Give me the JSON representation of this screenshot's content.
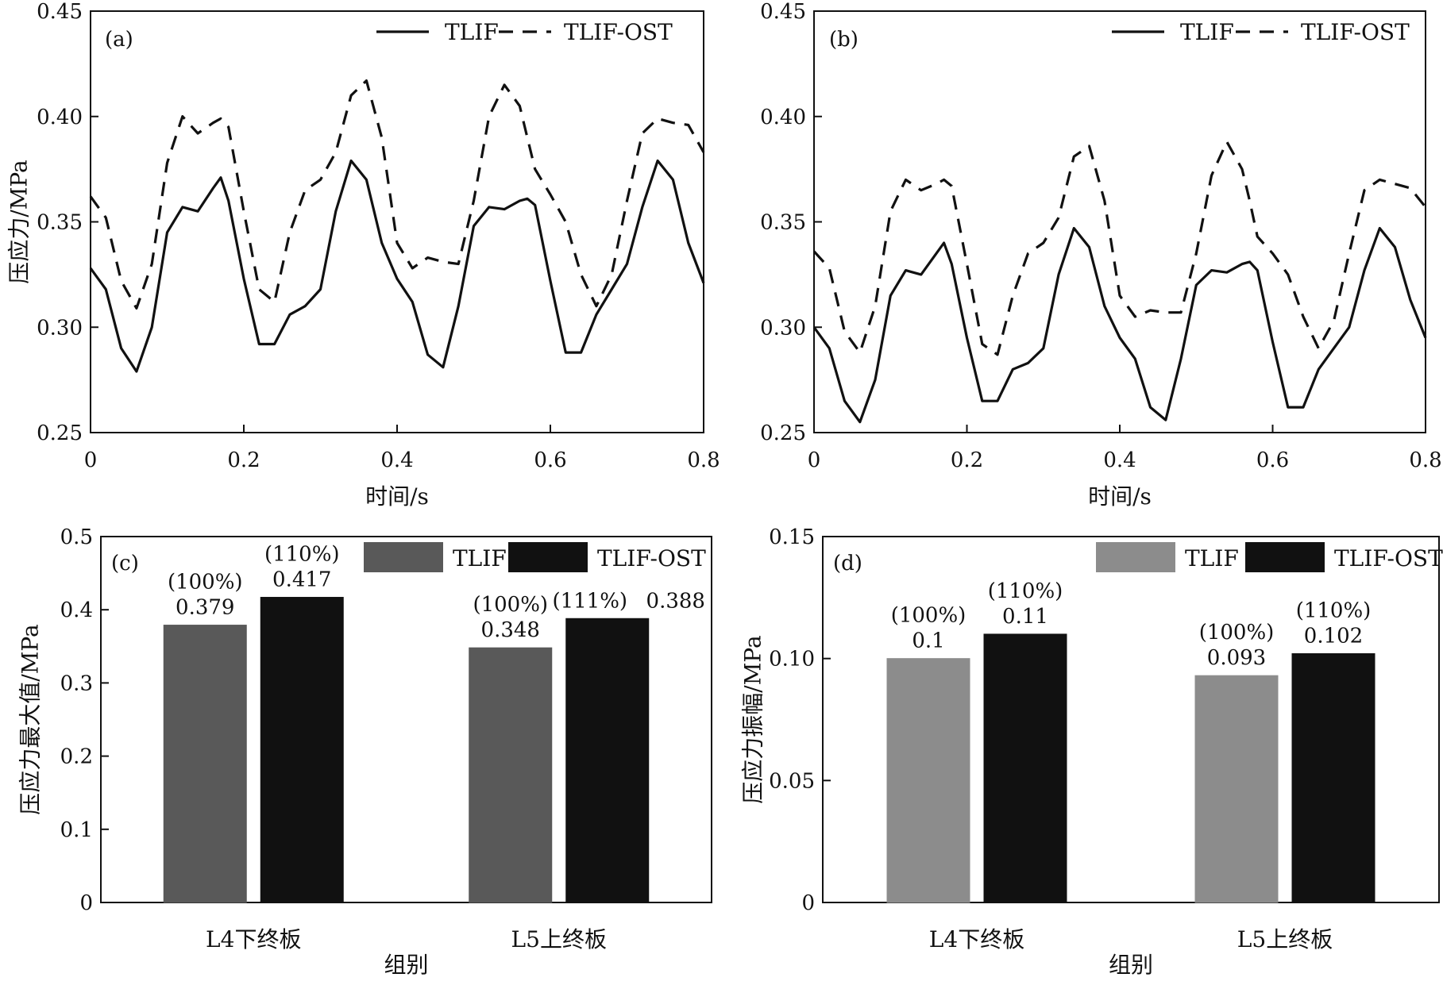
{
  "chart_data": [
    {
      "panel": "(a)",
      "type": "line",
      "xlabel": "时间/s",
      "ylabel": "压应力/MPa",
      "xlim": [
        0,
        0.8
      ],
      "ylim": [
        0.25,
        0.45
      ],
      "xticks": [
        "0",
        "0.2",
        "0.4",
        "0.6",
        "0.8"
      ],
      "yticks": [
        "0.25",
        "0.30",
        "0.35",
        "0.40",
        "0.45"
      ],
      "legend_position": "top-right",
      "series": [
        {
          "name": "TLIF",
          "style": "solid",
          "x": [
            0,
            0.02,
            0.04,
            0.06,
            0.08,
            0.1,
            0.12,
            0.14,
            0.16,
            0.17,
            0.18,
            0.2,
            0.22,
            0.24,
            0.26,
            0.28,
            0.3,
            0.32,
            0.34,
            0.36,
            0.38,
            0.4,
            0.42,
            0.44,
            0.46,
            0.48,
            0.5,
            0.52,
            0.54,
            0.56,
            0.57,
            0.58,
            0.6,
            0.62,
            0.64,
            0.66,
            0.68,
            0.7,
            0.72,
            0.74,
            0.76,
            0.78,
            0.8
          ],
          "y": [
            0.328,
            0.318,
            0.29,
            0.279,
            0.3,
            0.345,
            0.357,
            0.355,
            0.366,
            0.371,
            0.36,
            0.323,
            0.292,
            0.292,
            0.306,
            0.31,
            0.318,
            0.355,
            0.379,
            0.37,
            0.34,
            0.323,
            0.312,
            0.287,
            0.281,
            0.31,
            0.348,
            0.357,
            0.356,
            0.36,
            0.361,
            0.358,
            0.322,
            0.288,
            0.288,
            0.306,
            0.318,
            0.33,
            0.357,
            0.379,
            0.37,
            0.34,
            0.321
          ]
        },
        {
          "name": "TLIF-OST",
          "style": "dashed",
          "x": [
            0,
            0.02,
            0.04,
            0.06,
            0.08,
            0.1,
            0.12,
            0.14,
            0.16,
            0.17,
            0.18,
            0.2,
            0.22,
            0.24,
            0.26,
            0.28,
            0.3,
            0.32,
            0.34,
            0.36,
            0.38,
            0.4,
            0.42,
            0.44,
            0.46,
            0.48,
            0.5,
            0.52,
            0.54,
            0.56,
            0.57,
            0.58,
            0.6,
            0.62,
            0.64,
            0.66,
            0.68,
            0.7,
            0.72,
            0.74,
            0.76,
            0.78,
            0.8
          ],
          "y": [
            0.362,
            0.352,
            0.322,
            0.309,
            0.33,
            0.378,
            0.4,
            0.392,
            0.397,
            0.399,
            0.395,
            0.355,
            0.318,
            0.312,
            0.345,
            0.365,
            0.37,
            0.383,
            0.41,
            0.417,
            0.39,
            0.34,
            0.328,
            0.333,
            0.331,
            0.33,
            0.36,
            0.4,
            0.415,
            0.405,
            0.39,
            0.375,
            0.363,
            0.35,
            0.325,
            0.31,
            0.325,
            0.36,
            0.392,
            0.399,
            0.397,
            0.396,
            0.383
          ]
        }
      ]
    },
    {
      "panel": "(b)",
      "type": "line",
      "xlabel": "时间/s",
      "ylabel": "",
      "xlim": [
        0,
        0.8
      ],
      "ylim": [
        0.25,
        0.45
      ],
      "xticks": [
        "0",
        "0.2",
        "0.4",
        "0.6",
        "0.8"
      ],
      "yticks": [
        "0.25",
        "0.30",
        "0.35",
        "0.40",
        "0.45"
      ],
      "legend_position": "top-right",
      "series": [
        {
          "name": "TLIF",
          "style": "solid",
          "x": [
            0,
            0.02,
            0.04,
            0.06,
            0.08,
            0.1,
            0.12,
            0.14,
            0.16,
            0.17,
            0.18,
            0.2,
            0.22,
            0.24,
            0.26,
            0.28,
            0.3,
            0.32,
            0.34,
            0.36,
            0.38,
            0.4,
            0.42,
            0.44,
            0.46,
            0.48,
            0.5,
            0.52,
            0.54,
            0.56,
            0.57,
            0.58,
            0.6,
            0.62,
            0.64,
            0.66,
            0.68,
            0.7,
            0.72,
            0.74,
            0.76,
            0.78,
            0.8
          ],
          "y": [
            0.3,
            0.29,
            0.265,
            0.255,
            0.275,
            0.315,
            0.327,
            0.325,
            0.335,
            0.34,
            0.33,
            0.295,
            0.265,
            0.265,
            0.28,
            0.283,
            0.29,
            0.325,
            0.347,
            0.338,
            0.31,
            0.295,
            0.285,
            0.262,
            0.256,
            0.285,
            0.32,
            0.327,
            0.326,
            0.33,
            0.331,
            0.327,
            0.293,
            0.262,
            0.262,
            0.28,
            0.29,
            0.3,
            0.327,
            0.347,
            0.338,
            0.313,
            0.295
          ]
        },
        {
          "name": "TLIF-OST",
          "style": "dashed",
          "x": [
            0,
            0.02,
            0.04,
            0.06,
            0.08,
            0.1,
            0.12,
            0.14,
            0.16,
            0.17,
            0.18,
            0.2,
            0.22,
            0.24,
            0.26,
            0.28,
            0.3,
            0.32,
            0.34,
            0.36,
            0.38,
            0.4,
            0.42,
            0.44,
            0.46,
            0.48,
            0.5,
            0.52,
            0.54,
            0.56,
            0.57,
            0.58,
            0.6,
            0.62,
            0.64,
            0.66,
            0.68,
            0.7,
            0.72,
            0.74,
            0.76,
            0.78,
            0.8
          ],
          "y": [
            0.336,
            0.328,
            0.298,
            0.288,
            0.31,
            0.355,
            0.37,
            0.365,
            0.368,
            0.37,
            0.367,
            0.33,
            0.292,
            0.287,
            0.315,
            0.335,
            0.34,
            0.352,
            0.381,
            0.386,
            0.36,
            0.315,
            0.305,
            0.308,
            0.307,
            0.307,
            0.335,
            0.372,
            0.388,
            0.375,
            0.36,
            0.343,
            0.335,
            0.325,
            0.305,
            0.29,
            0.303,
            0.335,
            0.365,
            0.37,
            0.368,
            0.366,
            0.357
          ]
        }
      ]
    },
    {
      "panel": "(c)",
      "type": "bar",
      "xlabel": "组别",
      "ylabel": "压应力最大值/MPa",
      "categories": [
        "L4下终板",
        "L5上终板"
      ],
      "ylim": [
        0,
        0.5
      ],
      "yticks": [
        "0",
        "0.1",
        "0.2",
        "0.3",
        "0.4",
        "0.5"
      ],
      "legend_position": "top-right",
      "series": [
        {
          "name": "TLIF",
          "color": "#595959",
          "values": [
            0.379,
            0.348
          ],
          "labels": [
            "0.379",
            "0.348"
          ],
          "pct": [
            "(100%)",
            "(100%)"
          ]
        },
        {
          "name": "TLIF-OST",
          "color": "#111111",
          "values": [
            0.417,
            0.388
          ],
          "labels": [
            "0.417",
            "0.388"
          ],
          "pct": [
            "(110%)",
            "(111%)"
          ]
        }
      ]
    },
    {
      "panel": "(d)",
      "type": "bar",
      "xlabel": "组别",
      "ylabel": "压应力振幅/MPa",
      "categories": [
        "L4下终板",
        "L5上终板"
      ],
      "ylim": [
        0,
        0.15
      ],
      "yticks": [
        "0",
        "0.05",
        "0.10",
        "0.15"
      ],
      "legend_position": "top-right",
      "series": [
        {
          "name": "TLIF",
          "color": "#8c8c8c",
          "values": [
            0.1,
            0.093
          ],
          "labels": [
            "0.1",
            "0.093"
          ],
          "pct": [
            "(100%)",
            "(100%)"
          ]
        },
        {
          "name": "TLIF-OST",
          "color": "#111111",
          "values": [
            0.11,
            0.102
          ],
          "labels": [
            "0.11",
            "0.102"
          ],
          "pct": [
            "(110%)",
            "(110%)"
          ]
        }
      ]
    }
  ]
}
